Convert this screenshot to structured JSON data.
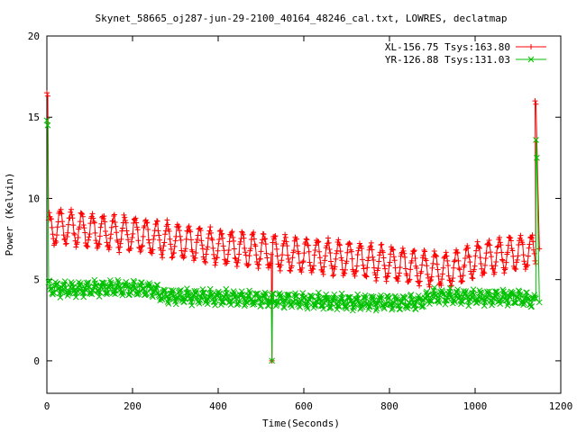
{
  "chart_data": {
    "type": "line",
    "title": "Skynet_58665_oj287-jun-29-2100_40164_48246_cal.txt, LOWRES, declatmap",
    "xlabel": "Time(Seconds)",
    "ylabel": "Power (Kelvin)",
    "xlim": [
      0,
      1200
    ],
    "ylim": [
      -2,
      20
    ],
    "xticks": [
      0,
      200,
      400,
      600,
      800,
      1000,
      1200
    ],
    "yticks": [
      0,
      5,
      10,
      15,
      20
    ],
    "grid": false,
    "legend_position": "top-right",
    "series": [
      {
        "name": "XL-156.75 Tsys:163.80",
        "color": "#ff0000",
        "marker": "plus",
        "oscillation_amplitude": 1.0,
        "oscillation_period": 25,
        "spikes": [
          {
            "x": 0,
            "y": 16.5
          },
          {
            "x": 2,
            "y": 16.3
          },
          {
            "x": 1140,
            "y": 16.0
          },
          {
            "x": 1142,
            "y": 15.8
          }
        ],
        "dropouts": [
          {
            "x": 525,
            "y": 0
          }
        ],
        "baseline": [
          {
            "x": 0,
            "y": 7.2
          },
          {
            "x": 5,
            "y": 8.0
          },
          {
            "x": 30,
            "y": 8.3
          },
          {
            "x": 100,
            "y": 8.0
          },
          {
            "x": 200,
            "y": 7.8
          },
          {
            "x": 300,
            "y": 7.4
          },
          {
            "x": 400,
            "y": 7.0
          },
          {
            "x": 500,
            "y": 6.8
          },
          {
            "x": 600,
            "y": 6.5
          },
          {
            "x": 700,
            "y": 6.3
          },
          {
            "x": 800,
            "y": 6.0
          },
          {
            "x": 880,
            "y": 5.7
          },
          {
            "x": 940,
            "y": 5.6
          },
          {
            "x": 1000,
            "y": 6.2
          },
          {
            "x": 1080,
            "y": 6.6
          },
          {
            "x": 1130,
            "y": 6.7
          },
          {
            "x": 1150,
            "y": 6.9
          }
        ]
      },
      {
        "name": "YR-126.88 Tsys:131.03",
        "color": "#00c000",
        "marker": "cross",
        "oscillation_amplitude": 0.35,
        "oscillation_period": 18,
        "spikes": [
          {
            "x": 0,
            "y": 14.8
          },
          {
            "x": 2,
            "y": 14.5
          },
          {
            "x": 1142,
            "y": 13.6
          },
          {
            "x": 1144,
            "y": 12.5
          }
        ],
        "dropouts": [
          {
            "x": 525,
            "y": 0
          }
        ],
        "baseline": [
          {
            "x": 0,
            "y": 4.5
          },
          {
            "x": 50,
            "y": 4.4
          },
          {
            "x": 150,
            "y": 4.5
          },
          {
            "x": 250,
            "y": 4.4
          },
          {
            "x": 270,
            "y": 4.0
          },
          {
            "x": 400,
            "y": 3.9
          },
          {
            "x": 500,
            "y": 3.8
          },
          {
            "x": 600,
            "y": 3.7
          },
          {
            "x": 700,
            "y": 3.6
          },
          {
            "x": 800,
            "y": 3.6
          },
          {
            "x": 870,
            "y": 3.6
          },
          {
            "x": 900,
            "y": 4.0
          },
          {
            "x": 1000,
            "y": 3.9
          },
          {
            "x": 1100,
            "y": 3.9
          },
          {
            "x": 1150,
            "y": 3.6
          }
        ]
      }
    ]
  }
}
